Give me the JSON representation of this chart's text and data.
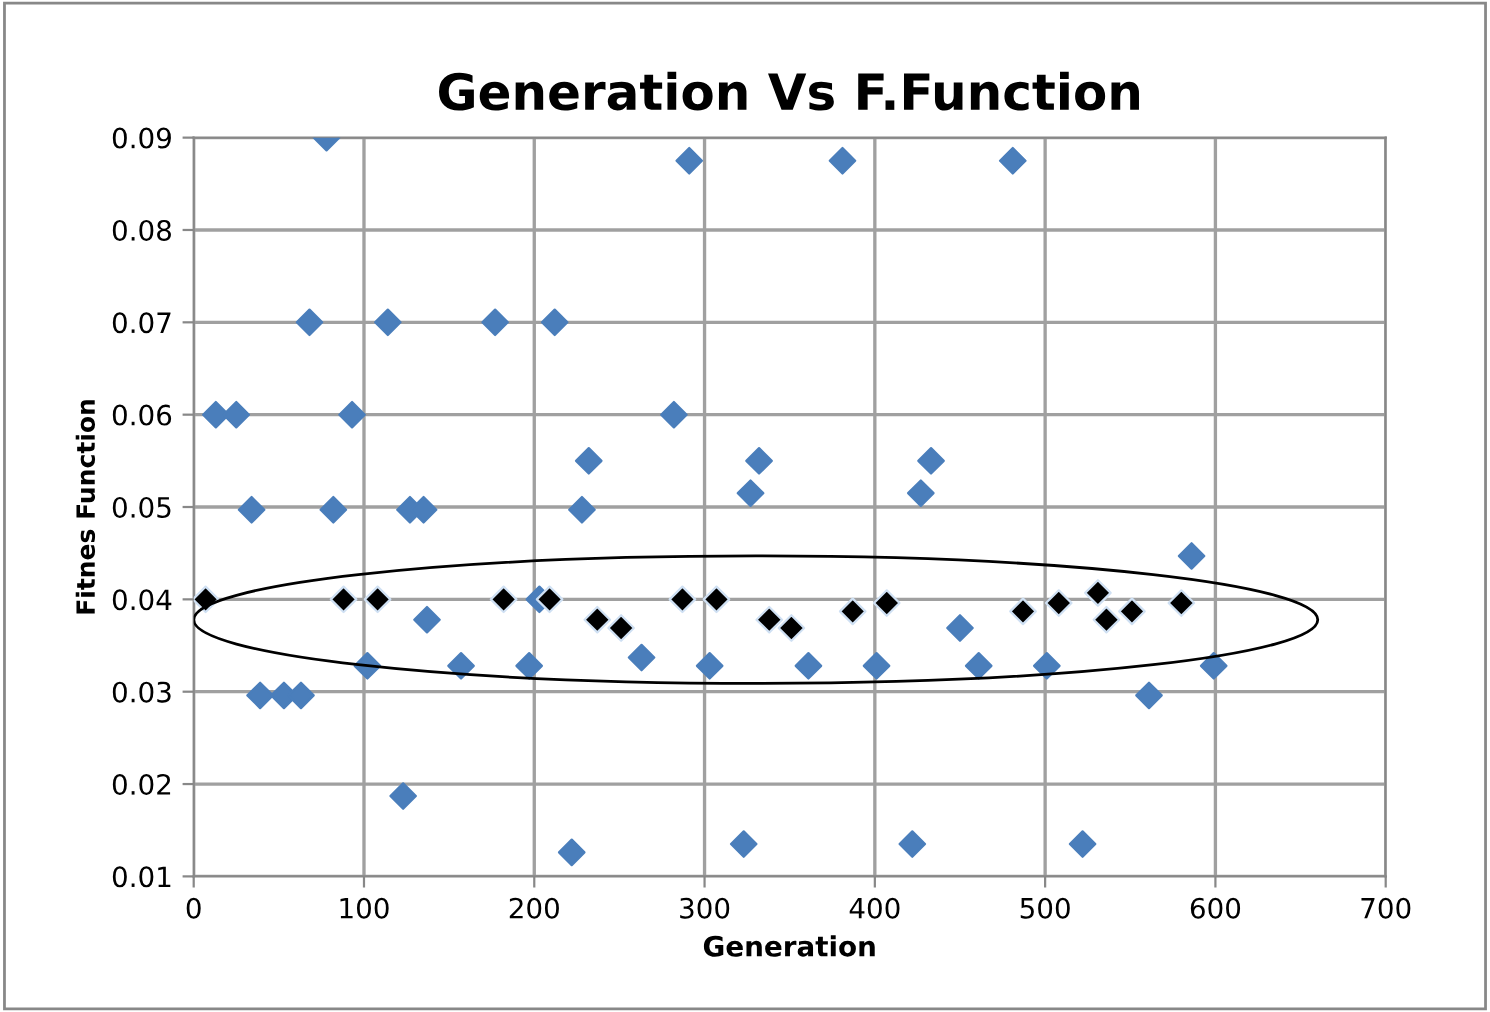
{
  "chart_data": {
    "type": "scatter",
    "title": "Generation Vs F.Function",
    "xlabel": "Generation",
    "ylabel": "Fitnes Function",
    "xlim": [
      0,
      700
    ],
    "xticks": [
      0,
      100,
      200,
      300,
      400,
      500,
      600,
      700
    ],
    "ylim": [
      0.01,
      0.09
    ],
    "yticks": [
      0.01,
      0.02,
      0.03,
      0.04,
      0.05,
      0.06,
      0.07,
      0.08,
      0.09
    ],
    "grid": true,
    "marker": "diamond",
    "series": [
      {
        "color": "#4a7ebb",
        "x": [
          78,
          291,
          381,
          481,
          68,
          114,
          177,
          212,
          13,
          25,
          93,
          282,
          232,
          332,
          433,
          327,
          427,
          34,
          82,
          127,
          135,
          228,
          203,
          137,
          102,
          157,
          197,
          303,
          361,
          401,
          461,
          501,
          599,
          263,
          450,
          39,
          53,
          63,
          561,
          123,
          222,
          323,
          422,
          522,
          586
        ],
        "values": [
          0.09,
          0.0875,
          0.0875,
          0.0875,
          0.07,
          0.07,
          0.07,
          0.07,
          0.06,
          0.06,
          0.06,
          0.06,
          0.055,
          0.055,
          0.055,
          0.0515,
          0.0515,
          0.0497,
          0.0497,
          0.0497,
          0.0497,
          0.0497,
          0.04,
          0.0378,
          0.0328,
          0.0328,
          0.0328,
          0.0328,
          0.0328,
          0.0328,
          0.0328,
          0.0328,
          0.0328,
          0.0337,
          0.0369,
          0.0296,
          0.0296,
          0.0296,
          0.0296,
          0.0187,
          0.0126,
          0.0135,
          0.0135,
          0.0135,
          0.0447
        ]
      },
      {
        "color": "#000000",
        "x": [
          7,
          88,
          108,
          182,
          209,
          287,
          307,
          237,
          338,
          251,
          351,
          387,
          407,
          487,
          508,
          531,
          536,
          551,
          580
        ],
        "values": [
          0.04,
          0.04,
          0.04,
          0.04,
          0.04,
          0.04,
          0.04,
          0.0378,
          0.0378,
          0.0369,
          0.0369,
          0.0387,
          0.0396,
          0.0387,
          0.0396,
          0.0407,
          0.0378,
          0.0387,
          0.0396
        ]
      }
    ]
  }
}
